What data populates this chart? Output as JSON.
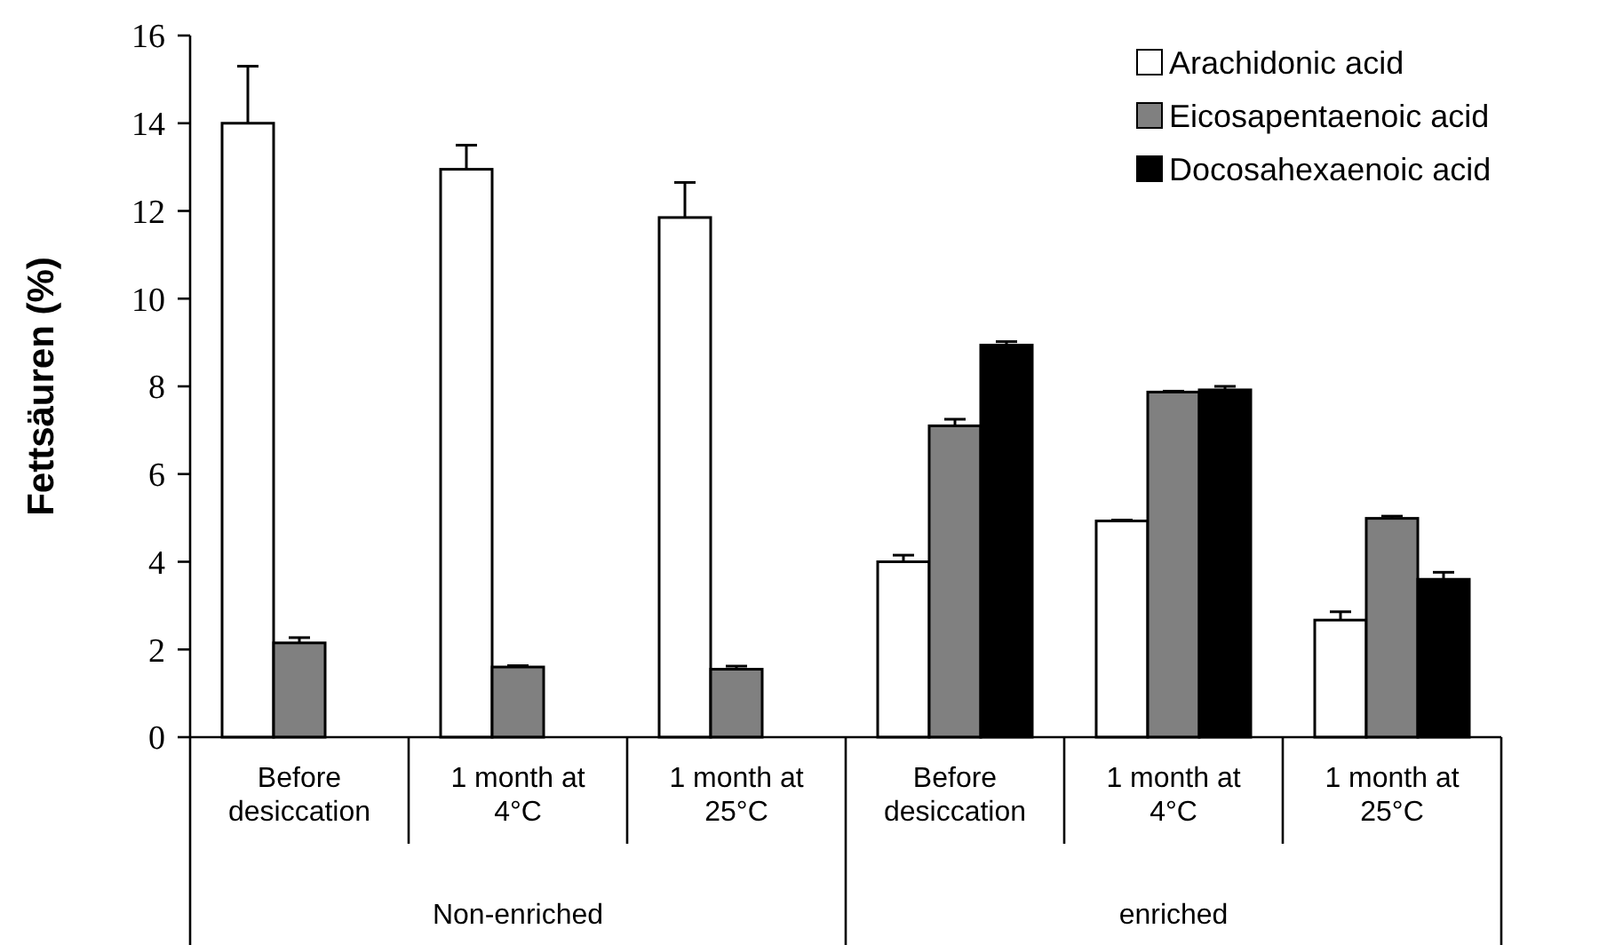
{
  "chart_data": {
    "type": "bar",
    "ylabel": "Fettsäuren (%)",
    "categories": [
      "Before desiccation",
      "1 month at 4°C",
      "1 month at 25°C",
      "Before desiccation",
      "1 month at 4°C",
      "1 month at 25°C"
    ],
    "series": [
      {
        "name": "Arachidonic acid",
        "color": "#ffffff",
        "values": [
          14,
          12.95,
          11.85,
          4.0,
          4.93,
          2.67
        ],
        "errors": [
          [
            14,
            15.3
          ],
          [
            12.95,
            13.5
          ],
          [
            11.85,
            12.65
          ],
          [
            4.0,
            4.15
          ],
          [
            4.93,
            4.95
          ],
          [
            2.67,
            2.86
          ]
        ]
      },
      {
        "name": "Eicosapentaenoic acid",
        "color": "#808080",
        "values": [
          2.15,
          1.6,
          1.55,
          7.1,
          7.87,
          4.99
        ],
        "errors": [
          [
            2.15,
            2.27
          ],
          [
            1.6,
            1.63
          ],
          [
            1.55,
            1.62
          ],
          [
            7.1,
            7.25
          ],
          [
            7.87,
            7.89
          ],
          [
            4.99,
            5.04
          ]
        ]
      },
      {
        "name": "Docosahexaenoic acid",
        "color": "#000000",
        "values": [
          0,
          0,
          0,
          8.94,
          7.92,
          3.6
        ],
        "errors": [
          null,
          null,
          null,
          [
            8.94,
            9.02
          ],
          [
            7.92,
            8.0
          ],
          [
            3.6,
            3.76
          ]
        ]
      }
    ],
    "annotations": [
      "Non-enriched",
      "enriched"
    ],
    "ylim": [
      0,
      16
    ],
    "yticks": [
      0,
      2,
      4,
      6,
      8,
      10,
      12,
      14,
      16
    ],
    "grid": false,
    "legend": "top right"
  }
}
